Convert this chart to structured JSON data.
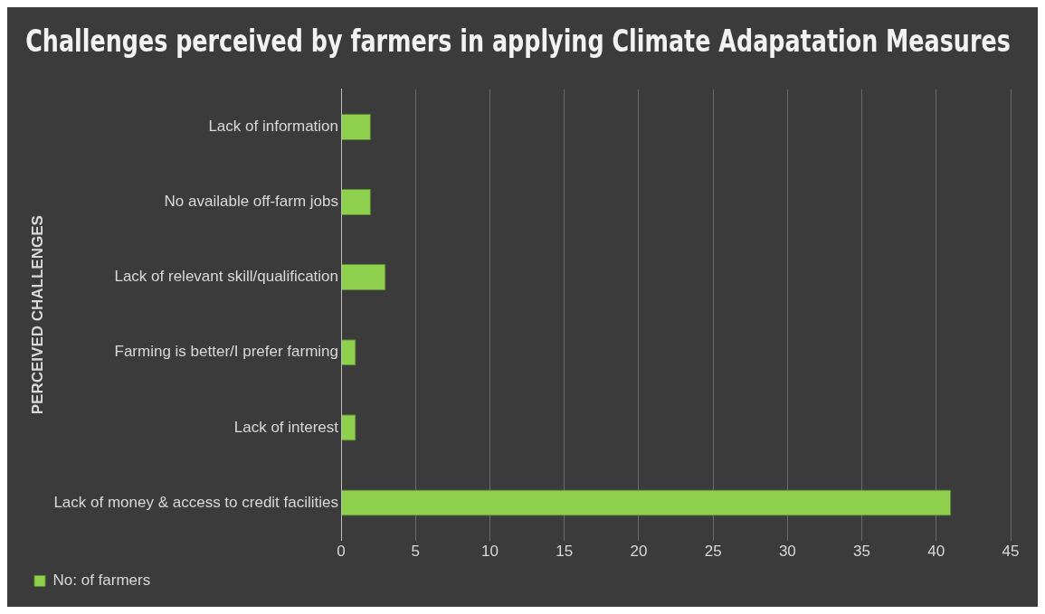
{
  "chart_data": {
    "type": "bar",
    "orientation": "horizontal",
    "title": "Challenges perceived by farmers in applying Climate Adapatation Measures",
    "ylabel": "PERCEIVED CHALLENGES",
    "categories": [
      "Lack of information",
      "No available off-farm jobs",
      "Lack of relevant skill/qualification",
      "Farming is better/I prefer farming",
      "Lack of interest",
      "Lack of money & access to credit facilities"
    ],
    "series": [
      {
        "name": "No: of farmers",
        "color": "#8fd14f",
        "values": [
          2,
          2,
          3,
          1,
          1,
          41
        ]
      }
    ],
    "xlim": [
      0,
      45
    ],
    "xticks": [
      0,
      5,
      10,
      15,
      20,
      25,
      30,
      35,
      40,
      45
    ],
    "grid": "x",
    "legend": "bottom"
  }
}
